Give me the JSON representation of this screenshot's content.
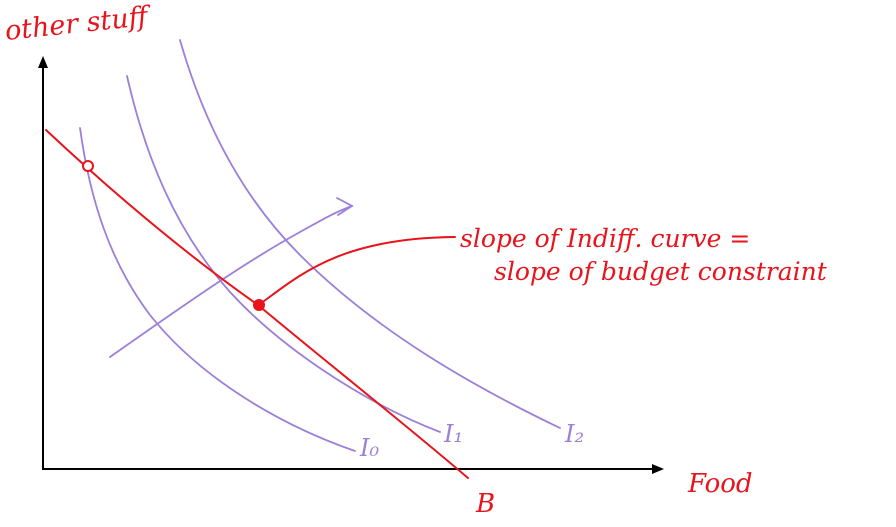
{
  "diagram": {
    "y_axis_label": "other stuff",
    "x_axis_label": "Food",
    "budget_label": "B",
    "curve_labels": [
      "I₀",
      "I₁",
      "I₂"
    ],
    "annotation": {
      "line1": "slope of Indiff. curve =",
      "line2": "slope of budget constraint"
    },
    "colors": {
      "axes": "#000000",
      "budget_line": "#e8131b",
      "indifference_curves": "#9b7fd9",
      "annotation": "#e8131b"
    }
  }
}
